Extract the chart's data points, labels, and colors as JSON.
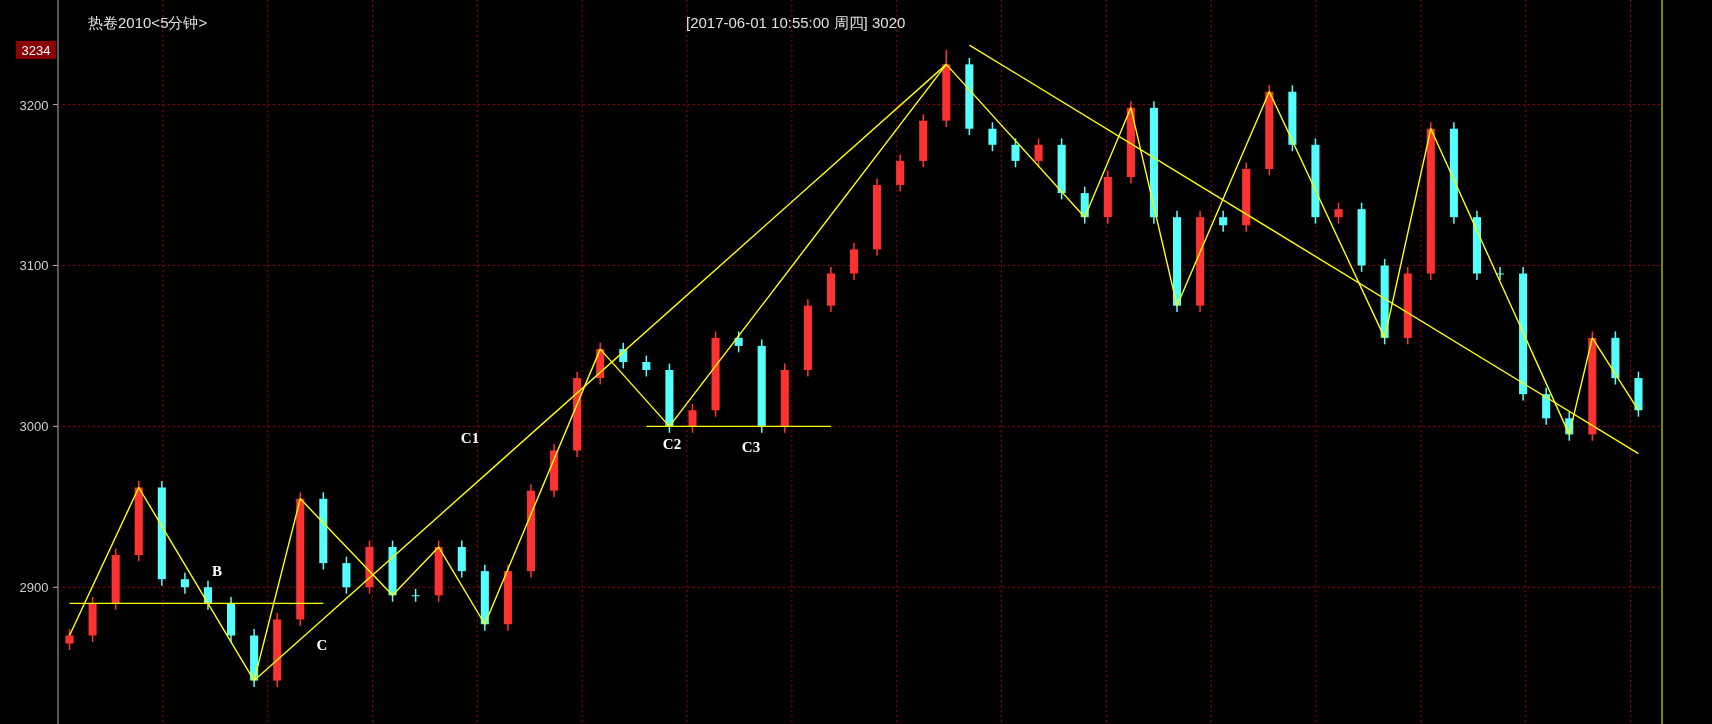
{
  "chart_data": {
    "type": "candlestick",
    "title": "热卷2010<5分钟>",
    "subtitle": "[2017-06-01  10:55:00 周四]   3020",
    "categories": [
      null,
      null,
      null,
      null,
      null,
      null,
      null,
      null,
      null,
      null,
      null,
      null,
      null,
      null,
      null,
      null,
      null,
      null,
      null,
      null,
      null,
      null,
      null,
      null,
      null,
      null,
      null,
      null,
      null,
      null,
      null,
      null,
      null,
      null,
      null,
      null,
      null,
      null,
      null,
      null,
      null,
      null,
      null,
      null,
      null,
      null,
      null,
      null,
      null,
      null,
      null,
      null,
      null,
      null,
      null,
      null,
      null,
      null,
      null,
      null,
      null,
      null,
      null,
      null,
      null,
      null,
      null,
      null,
      null
    ],
    "ohlc": [
      [
        2865,
        2874,
        2861,
        2870
      ],
      [
        2870,
        2894,
        2866,
        2890
      ],
      [
        2890,
        2924,
        2886,
        2920
      ],
      [
        2920,
        2966,
        2916,
        2962
      ],
      [
        2962,
        2966,
        2901,
        2905
      ],
      [
        2905,
        2909,
        2896,
        2900
      ],
      [
        2900,
        2904,
        2886,
        2890
      ],
      [
        2890,
        2894,
        2866,
        2870
      ],
      [
        2870,
        2874,
        2838,
        2842
      ],
      [
        2842,
        2884,
        2838,
        2880
      ],
      [
        2880,
        2959,
        2876,
        2955
      ],
      [
        2955,
        2959,
        2911,
        2915
      ],
      [
        2915,
        2919,
        2896,
        2900
      ],
      [
        2900,
        2929,
        2896,
        2925
      ],
      [
        2925,
        2929,
        2891,
        2895
      ],
      [
        2895,
        2899,
        2891,
        2895
      ],
      [
        2895,
        2929,
        2891,
        2925
      ],
      [
        2925,
        2929,
        2906,
        2910
      ],
      [
        2910,
        2914,
        2873,
        2877
      ],
      [
        2877,
        2914,
        2873,
        2910
      ],
      [
        2910,
        2964,
        2906,
        2960
      ],
      [
        2960,
        2989,
        2956,
        2985
      ],
      [
        2985,
        3034,
        2981,
        3030
      ],
      [
        3030,
        3052,
        3026,
        3048
      ],
      [
        3048,
        3052,
        3036,
        3040
      ],
      [
        3040,
        3044,
        3031,
        3035
      ],
      [
        3035,
        3039,
        2996,
        3000
      ],
      [
        3000,
        3014,
        2996,
        3010
      ],
      [
        3010,
        3059,
        3006,
        3055
      ],
      [
        3055,
        3059,
        3046,
        3050
      ],
      [
        3050,
        3054,
        2996,
        3000
      ],
      [
        3000,
        3039,
        2996,
        3035
      ],
      [
        3035,
        3079,
        3031,
        3075
      ],
      [
        3075,
        3099,
        3071,
        3095
      ],
      [
        3095,
        3114,
        3091,
        3110
      ],
      [
        3110,
        3154,
        3106,
        3150
      ],
      [
        3150,
        3169,
        3146,
        3165
      ],
      [
        3165,
        3194,
        3161,
        3190
      ],
      [
        3190,
        3234,
        3186,
        3225
      ],
      [
        3225,
        3229,
        3181,
        3185
      ],
      [
        3185,
        3189,
        3171,
        3175
      ],
      [
        3175,
        3179,
        3161,
        3165
      ],
      [
        3165,
        3179,
        3161,
        3175
      ],
      [
        3175,
        3179,
        3141,
        3145
      ],
      [
        3145,
        3149,
        3126,
        3130
      ],
      [
        3130,
        3159,
        3126,
        3155
      ],
      [
        3155,
        3202,
        3151,
        3198
      ],
      [
        3198,
        3202,
        3126,
        3130
      ],
      [
        3130,
        3134,
        3071,
        3075
      ],
      [
        3075,
        3134,
        3071,
        3130
      ],
      [
        3130,
        3134,
        3121,
        3125
      ],
      [
        3125,
        3164,
        3121,
        3160
      ],
      [
        3160,
        3212,
        3156,
        3208
      ],
      [
        3208,
        3212,
        3171,
        3175
      ],
      [
        3175,
        3179,
        3126,
        3130
      ],
      [
        3130,
        3139,
        3126,
        3135
      ],
      [
        3135,
        3139,
        3096,
        3100
      ],
      [
        3100,
        3104,
        3051,
        3055
      ],
      [
        3055,
        3099,
        3051,
        3095
      ],
      [
        3095,
        3189,
        3091,
        3185
      ],
      [
        3185,
        3189,
        3126,
        3130
      ],
      [
        3130,
        3134,
        3091,
        3095
      ],
      [
        3095,
        3099,
        3091,
        3095
      ],
      [
        3095,
        3099,
        3016,
        3020
      ],
      [
        3020,
        3024,
        3001,
        3005
      ],
      [
        3005,
        3009,
        2991,
        2995
      ],
      [
        2995,
        3059,
        2991,
        3055
      ],
      [
        3055,
        3059,
        3026,
        3030
      ],
      [
        3030,
        3034,
        3006,
        3010
      ]
    ],
    "colors": [
      "#ff3232",
      "#ff3232",
      "#ff3232",
      "#ff3232",
      "#54ffff",
      "#54ffff",
      "#54ffff",
      "#54ffff",
      "#54ffff",
      "#ff3232",
      "#ff3232",
      "#54ffff",
      "#54ffff",
      "#ff3232",
      "#54ffff",
      "#54ffff",
      "#ff3232",
      "#54ffff",
      "#54ffff",
      "#ff3232",
      "#ff3232",
      "#ff3232",
      "#ff3232",
      "#ff3232",
      "#54ffff",
      "#54ffff",
      "#54ffff",
      "#ff3232",
      "#ff3232",
      "#54ffff",
      "#54ffff",
      "#ff3232",
      "#ff3232",
      "#ff3232",
      "#ff3232",
      "#ff3232",
      "#ff3232",
      "#ff3232",
      "#ff3232",
      "#54ffff",
      "#54ffff",
      "#54ffff",
      "#ff3232",
      "#54ffff",
      "#54ffff",
      "#ff3232",
      "#ff3232",
      "#54ffff",
      "#54ffff",
      "#ff3232",
      "#54ffff",
      "#ff3232",
      "#ff3232",
      "#54ffff",
      "#54ffff",
      "#ff3232",
      "#54ffff",
      "#54ffff",
      "#ff3232",
      "#ff3232",
      "#54ffff",
      "#54ffff",
      "#54ffff",
      "#54ffff",
      "#54ffff",
      "#54ffff",
      "#ff3232",
      "#54ffff",
      "#54ffff"
    ],
    "series": [
      {
        "type": "line",
        "color": "#ffff00",
        "values": [
          2870,
          null,
          null,
          2962,
          null,
          null,
          null,
          null,
          2842,
          null,
          2955,
          null,
          null,
          null,
          2895,
          null,
          2925,
          null,
          2877,
          null,
          null,
          null,
          null,
          3048,
          null,
          null,
          3000,
          null,
          null,
          null,
          null,
          null,
          null,
          null,
          null,
          null,
          null,
          null,
          3225,
          null,
          null,
          null,
          null,
          null,
          3130,
          null,
          3198,
          null,
          3075,
          null,
          null,
          null,
          3208,
          null,
          null,
          null,
          null,
          3055,
          null,
          3185,
          null,
          null,
          null,
          null,
          null,
          2995,
          3055,
          null,
          3010
        ]
      },
      {
        "type": "line",
        "color": "#ffff00",
        "values": [
          null,
          null,
          null,
          null,
          null,
          null,
          null,
          null,
          2842,
          null,
          null,
          null,
          null,
          null,
          null,
          null,
          null,
          null,
          null,
          null,
          null,
          null,
          null,
          null,
          null,
          null,
          null,
          null,
          null,
          null,
          null,
          null,
          null,
          null,
          null,
          null,
          null,
          null,
          3225,
          null,
          null,
          null,
          null,
          null,
          null,
          null,
          null,
          null,
          null,
          null,
          null,
          null,
          null,
          null,
          null,
          null,
          null,
          null,
          null,
          null,
          null,
          null,
          null,
          null,
          null,
          null,
          null,
          null,
          null
        ]
      },
      {
        "type": "line",
        "color": "#ffff00",
        "values": [
          null,
          null,
          null,
          null,
          null,
          null,
          null,
          null,
          null,
          null,
          null,
          null,
          null,
          null,
          null,
          null,
          null,
          null,
          null,
          null,
          null,
          null,
          null,
          null,
          null,
          null,
          null,
          null,
          null,
          null,
          null,
          null,
          null,
          null,
          null,
          null,
          null,
          null,
          null,
          3237,
          null,
          null,
          null,
          null,
          null,
          null,
          null,
          null,
          null,
          null,
          null,
          null,
          null,
          null,
          null,
          null,
          null,
          null,
          null,
          null,
          null,
          null,
          null,
          null,
          null,
          null,
          null,
          null,
          2983
        ]
      },
      {
        "type": "line",
        "color": "#ffff00",
        "values": [
          null,
          null,
          null,
          null,
          null,
          null,
          null,
          null,
          null,
          null,
          null,
          null,
          null,
          null,
          null,
          null,
          null,
          null,
          null,
          null,
          null,
          null,
          null,
          null,
          null,
          3000,
          null,
          null,
          null,
          null,
          null,
          null,
          null,
          3000,
          null,
          null,
          null,
          null,
          null,
          null,
          null,
          null,
          null,
          null,
          null,
          null,
          null,
          null,
          null,
          null,
          null,
          null,
          null,
          null,
          null,
          null,
          null,
          null,
          null,
          null,
          null,
          null,
          null,
          null,
          null,
          null,
          null,
          null,
          null
        ]
      },
      {
        "type": "line",
        "color": "#ffff00",
        "values": [
          2890,
          null,
          null,
          null,
          null,
          null,
          null,
          null,
          null,
          null,
          null,
          2890,
          null,
          null,
          null,
          null,
          null,
          null,
          null,
          null,
          null,
          null,
          null,
          null,
          null,
          null,
          null,
          null,
          null,
          null,
          null,
          null,
          null,
          null,
          null,
          null,
          null,
          null,
          null,
          null,
          null,
          null,
          null,
          null,
          null,
          null,
          null,
          null,
          null,
          null,
          null,
          null,
          null,
          null,
          null,
          null,
          null,
          null,
          null,
          null,
          null,
          null,
          null,
          null,
          null,
          null,
          null,
          null,
          null
        ]
      }
    ],
    "ylim": [
      2815,
      3265
    ],
    "yticks": [
      2900,
      3000,
      3100,
      3200,
      {
        "value": 3234,
        "label": "3234"
      }
    ],
    "grid": true,
    "annotations": [
      "B",
      "C",
      "C1",
      "C2",
      "C3"
    ]
  }
}
